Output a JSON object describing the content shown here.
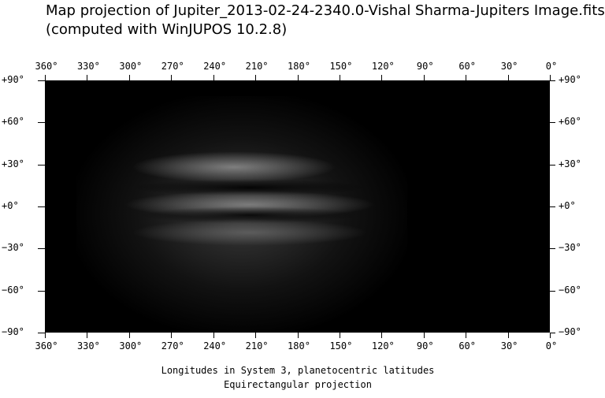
{
  "title_line1": "Map projection of Jupiter_2013-02-24-2340.0-Vishal Sharma-Jupiters Image.fits",
  "title_line2": "(computed with WinJUPOS 10.2.8)",
  "longitude_labels": [
    "360°",
    "330°",
    "300°",
    "270°",
    "240°",
    "210°",
    "180°",
    "150°",
    "120°",
    "90°",
    "60°",
    "30°",
    "0°"
  ],
  "latitude_labels": [
    "+90°",
    "+60°",
    "+30°",
    "+0°",
    "−30°",
    "−60°",
    "−90°"
  ],
  "caption_line1": "Longitudes in System 3, planetocentric latitudes",
  "caption_line2": "Equirectangular projection",
  "map_image": "Jupiter map, grayscale, belts visible centered near longitude 235°"
}
